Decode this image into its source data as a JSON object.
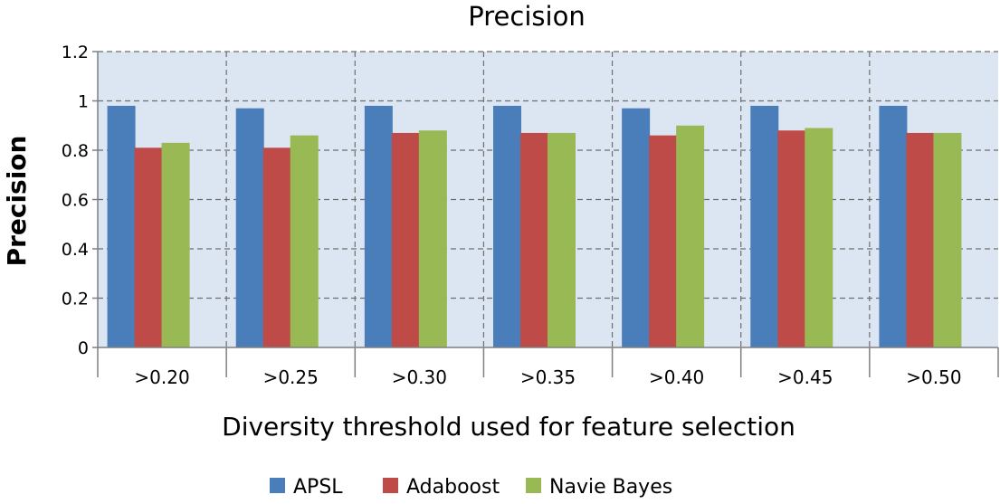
{
  "chart_data": {
    "type": "bar",
    "title": "Precision",
    "xlabel": "Diversity threshold used for feature selection",
    "ylabel": "Precision",
    "categories": [
      ">0.20",
      ">0.25",
      ">0.30",
      ">0.35",
      ">0.40",
      ">0.45",
      ">0.50"
    ],
    "series": [
      {
        "name": "APSL",
        "color": "#4a7ebb",
        "values": [
          0.98,
          0.97,
          0.98,
          0.98,
          0.97,
          0.98,
          0.98
        ]
      },
      {
        "name": "Adaboost",
        "color": "#be4b48",
        "values": [
          0.81,
          0.81,
          0.87,
          0.87,
          0.86,
          0.88,
          0.87
        ]
      },
      {
        "name": "Navie Bayes",
        "color": "#98b954",
        "values": [
          0.83,
          0.86,
          0.88,
          0.87,
          0.9,
          0.89,
          0.87
        ]
      }
    ],
    "ylim": [
      0,
      1.2
    ],
    "yticks": [
      "0",
      "0.2",
      "0.4",
      "0.6",
      "0.8",
      "1",
      "1.2"
    ],
    "grid": true,
    "plot_background": "#dce6f2",
    "legend_position": "bottom"
  }
}
